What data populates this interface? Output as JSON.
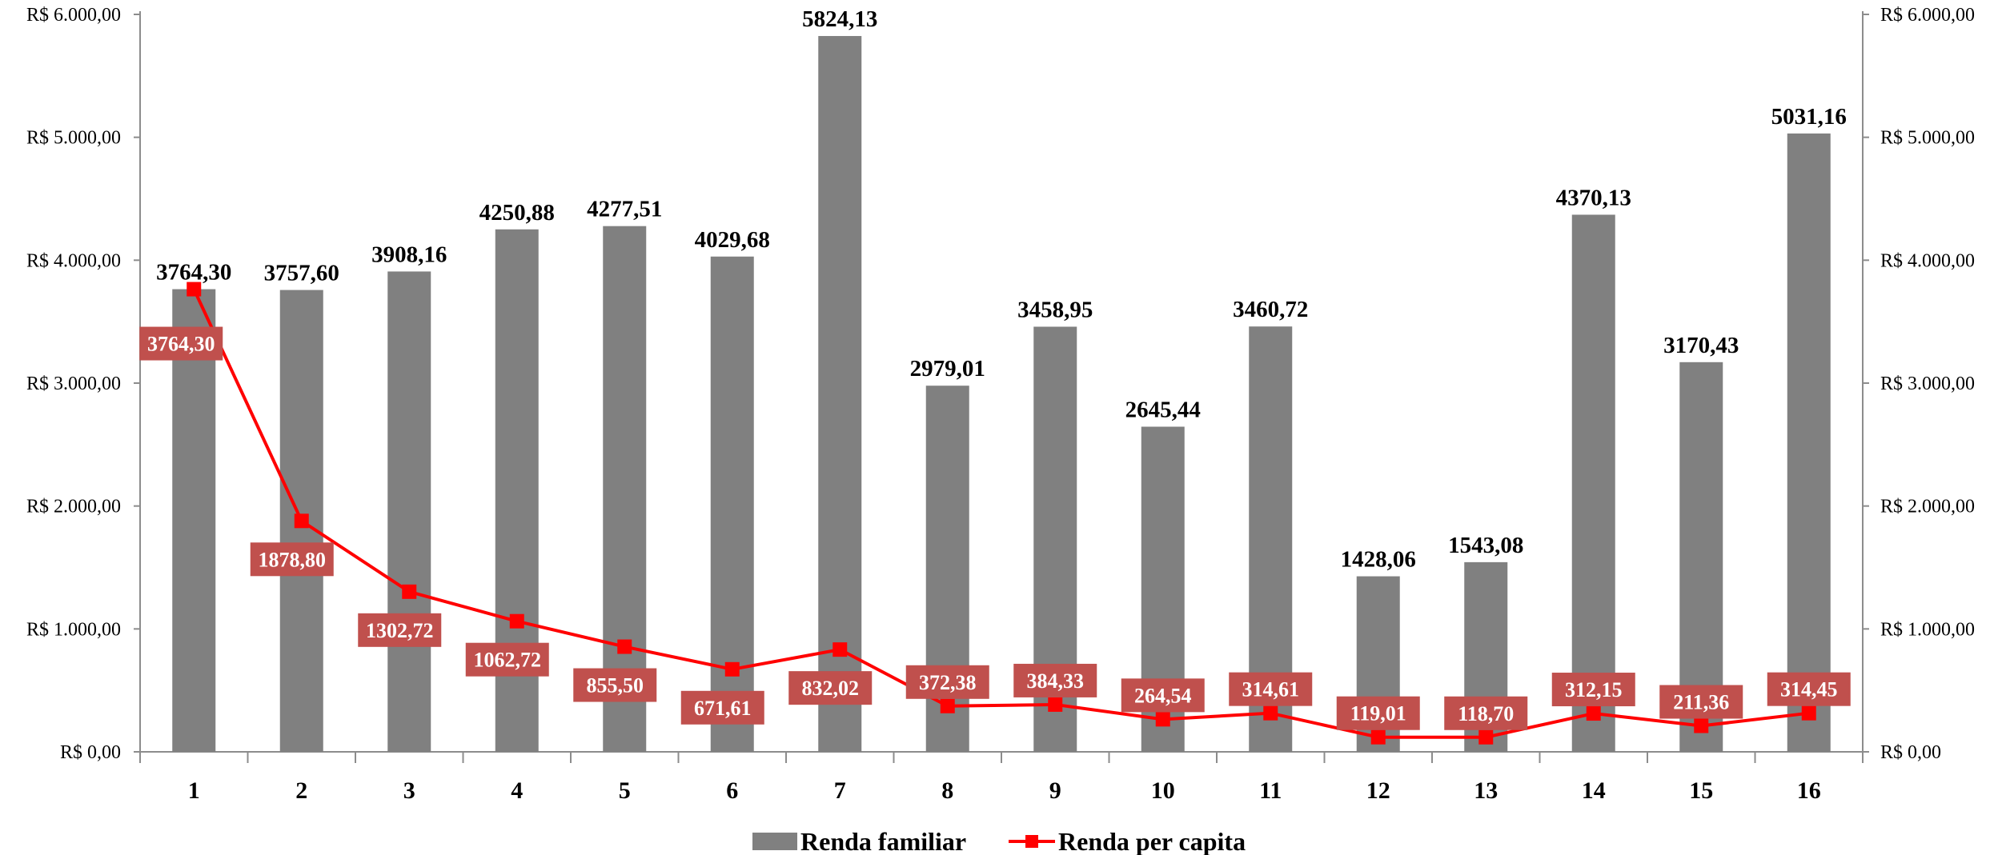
{
  "chart_data": {
    "type": "bar",
    "categories": [
      "1",
      "2",
      "3",
      "4",
      "5",
      "6",
      "7",
      "8",
      "9",
      "10",
      "11",
      "12",
      "13",
      "14",
      "15",
      "16"
    ],
    "series": [
      {
        "name": "Renda familiar",
        "kind": "bar",
        "color": "#808080",
        "values": [
          3764.3,
          3757.6,
          3908.16,
          4250.88,
          4277.51,
          4029.68,
          5824.13,
          2979.01,
          3458.95,
          2645.44,
          3460.72,
          1428.06,
          1543.08,
          4370.13,
          3170.43,
          5031.16
        ],
        "labels": [
          "3764,30",
          "3757,60",
          "3908,16",
          "4250,88",
          "4277,51",
          "4029,68",
          "5824,13",
          "2979,01",
          "3458,95",
          "2645,44",
          "3460,72",
          "1428,06",
          "1543,08",
          "4370,13",
          "3170,43",
          "5031,16"
        ]
      },
      {
        "name": "Renda per capita",
        "kind": "line",
        "color": "#ff0000",
        "label_bg": "#c0504d",
        "values": [
          3764.3,
          1878.8,
          1302.72,
          1062.72,
          855.5,
          671.61,
          832.02,
          372.38,
          384.33,
          264.54,
          314.61,
          119.01,
          118.7,
          312.15,
          211.36,
          314.45
        ],
        "labels": [
          "3764,30",
          "1878,80",
          "1302,72",
          "1062,72",
          "855,50",
          "671,61",
          "832,02",
          "372,38",
          "384,33",
          "264,54",
          "314,61",
          "119,01",
          "118,70",
          "312,15",
          "211,36",
          "314,45"
        ]
      }
    ],
    "ylim": [
      0,
      6000
    ],
    "y_ticks": [
      0,
      1000,
      2000,
      3000,
      4000,
      5000,
      6000
    ],
    "y_tick_labels": [
      "R$ 0,00",
      "R$ 1.000,00",
      "R$ 2.000,00",
      "R$ 3.000,00",
      "R$ 4.000,00",
      "R$ 5.000,00",
      "R$ 6.000,00"
    ],
    "secondary_y_tick_labels": [
      "R$ 0,00",
      "R$ 1.000,00",
      "R$ 2.000,00",
      "R$ 3.000,00",
      "R$ 4.000,00",
      "R$ 5.000,00",
      "R$ 6.000,00"
    ],
    "title": "",
    "xlabel": "",
    "ylabel": "",
    "grid": false,
    "legend_position": "bottom-center"
  }
}
